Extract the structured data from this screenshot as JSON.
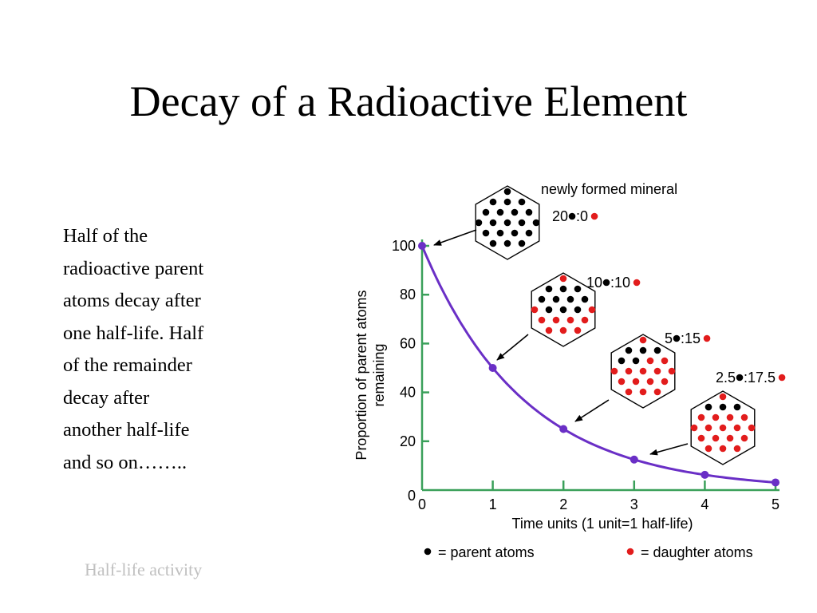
{
  "slide": {
    "title": "Decay of a Radioactive Element",
    "body_lines": [
      "Half of the",
      "radioactive parent",
      "atoms decay after",
      "one half-life. Half",
      "of the remainder",
      "decay after",
      "another half-life",
      "and so on…….."
    ],
    "footer_link": "Half-life activity"
  },
  "colors": {
    "curve": "#6a2fc6",
    "axes": "#3aa05a",
    "parent_atom": "#000000",
    "daughter_atom": "#e21c1c"
  },
  "chart_data": {
    "type": "line",
    "x": [
      0,
      1,
      2,
      3,
      4,
      5
    ],
    "y": [
      100,
      50,
      25,
      12.5,
      6.25,
      3.125
    ],
    "xlabel": "Time units (1 unit=1 half-life)",
    "ylabel_lines": [
      "Proportion of parent atoms",
      "remaining"
    ],
    "xlim": [
      0,
      5
    ],
    "ylim": [
      0,
      100
    ],
    "xticks": [
      "0",
      "1",
      "2",
      "3",
      "4",
      "5"
    ],
    "yticks": [
      "0",
      "20",
      "40",
      "60",
      "80",
      "100"
    ],
    "grid": false,
    "annotations": [
      {
        "ratio_left": "20",
        "ratio_right": ":0",
        "parent": 20,
        "daughter": 0,
        "at_x": 0,
        "heading": "newly formed mineral"
      },
      {
        "ratio_left": "10",
        "ratio_right": ":10",
        "parent": 10,
        "daughter": 10,
        "at_x": 1,
        "heading": ""
      },
      {
        "ratio_left": "5",
        "ratio_right": ":15",
        "parent": 5,
        "daughter": 15,
        "at_x": 2,
        "heading": ""
      },
      {
        "ratio_left": "2.5",
        "ratio_right": ":17.5",
        "parent": 2.5,
        "daughter": 17.5,
        "at_x": 3,
        "heading": ""
      }
    ],
    "legend": [
      {
        "symbol": "parent_atom",
        "label": "= parent atoms"
      },
      {
        "symbol": "daughter_atom",
        "label": "= daughter atoms"
      }
    ]
  }
}
